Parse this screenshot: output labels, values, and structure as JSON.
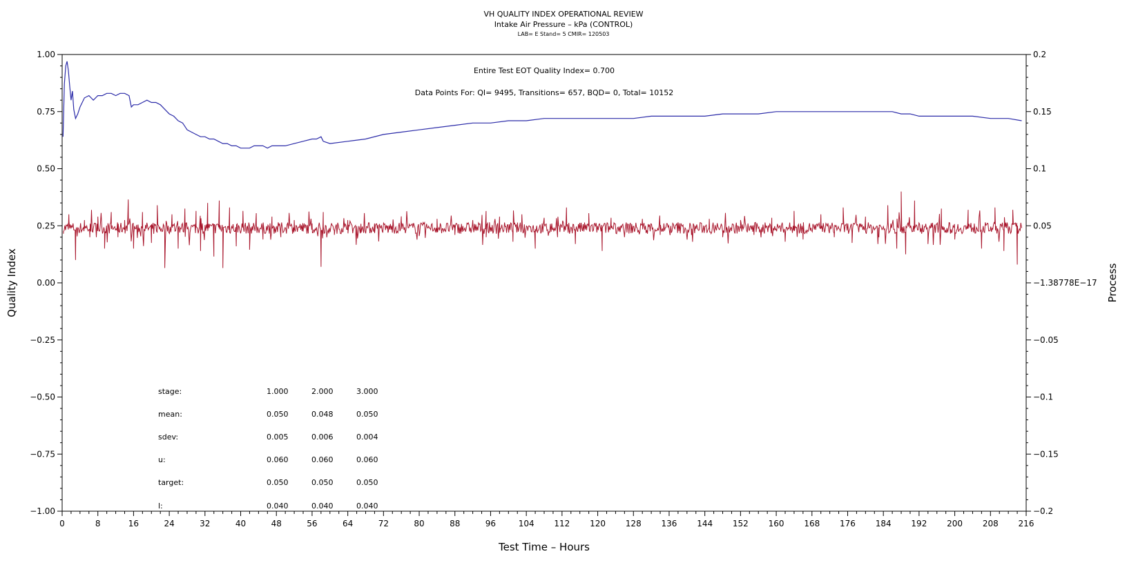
{
  "header": {
    "title": "VH QUALITY INDEX OPERATIONAL REVIEW",
    "subtitle": "Intake Air Pressure – kPa (CONTROL)",
    "meta": "LAB= E Stand= 5 CMIR= 120503"
  },
  "annotations": {
    "eot": "Entire Test EOT Quality Index=   0.700",
    "datapoints": "Data Points For: QI=  9495, Transitions=   657, BQD=     0, Total= 10152"
  },
  "colors": {
    "quality_index": "#2a2aa8",
    "process": "#a8142a",
    "axes": "#000000"
  },
  "chart_data": {
    "type": "line",
    "xlabel": "Test Time – Hours",
    "ylabel": "Quality Index",
    "y2label": "Process",
    "xlim": [
      0,
      216
    ],
    "ylim": [
      -1.0,
      1.0
    ],
    "y2lim": [
      -0.2,
      0.2
    ],
    "x_ticks": [
      "0",
      "8",
      "16",
      "24",
      "32",
      "40",
      "48",
      "56",
      "64",
      "72",
      "80",
      "88",
      "96",
      "104",
      "112",
      "120",
      "128",
      "136",
      "144",
      "152",
      "160",
      "168",
      "176",
      "184",
      "192",
      "200",
      "208",
      "216"
    ],
    "y_ticks": [
      "1.00",
      "0.75",
      "0.50",
      "0.25",
      "0.00",
      "−0.25",
      "−0.50",
      "−0.75",
      "−1.00"
    ],
    "y2_ticks": [
      "0.2",
      "0.15",
      "0.1",
      "0.05",
      "−1.38778E−17",
      "−0.05",
      "−0.1",
      "−0.15",
      "−0.2"
    ],
    "series": [
      {
        "axis": "left",
        "x": [
          0.2,
          0.5,
          0.8,
          1.1,
          1.4,
          1.7,
          2.0,
          2.3,
          2.6,
          3.0,
          3.5,
          4.0,
          5.0,
          6.0,
          7.0,
          8.0,
          9.0,
          10.0,
          11.0,
          12.0,
          13.0,
          14.0,
          15.0,
          15.5,
          16.0,
          17.0,
          18.0,
          19.0,
          20.0,
          21.0,
          22.0,
          23.0,
          24.0,
          25.0,
          26.0,
          27.0,
          28.0,
          29.0,
          30.0,
          31.0,
          32.0,
          33.0,
          34.0,
          35.0,
          36.0,
          37.0,
          38.0,
          39.0,
          40.0,
          41.0,
          42.0,
          43.0,
          44.0,
          45.0,
          46.0,
          47.0,
          48.0,
          50.0,
          52.0,
          54.0,
          56.0,
          57.0,
          58.0,
          58.5,
          60.0,
          64.0,
          68.0,
          72.0,
          76.0,
          80.0,
          84.0,
          88.0,
          92.0,
          96.0,
          100.0,
          104.0,
          108.0,
          112.0,
          116.0,
          120.0,
          124.0,
          128.0,
          132.0,
          136.0,
          140.0,
          144.0,
          148.0,
          152.0,
          156.0,
          160.0,
          164.0,
          168.0,
          172.0,
          176.0,
          180.0,
          184.0,
          186.0,
          188.0,
          190.0,
          192.0,
          196.0,
          200.0,
          204.0,
          208.0,
          212.0,
          215.0
        ],
        "y": [
          0.64,
          0.87,
          0.95,
          0.97,
          0.93,
          0.86,
          0.8,
          0.84,
          0.76,
          0.72,
          0.74,
          0.77,
          0.81,
          0.82,
          0.8,
          0.82,
          0.82,
          0.83,
          0.83,
          0.82,
          0.83,
          0.83,
          0.82,
          0.77,
          0.78,
          0.78,
          0.79,
          0.8,
          0.79,
          0.79,
          0.78,
          0.76,
          0.74,
          0.73,
          0.71,
          0.7,
          0.67,
          0.66,
          0.65,
          0.64,
          0.64,
          0.63,
          0.63,
          0.62,
          0.61,
          0.61,
          0.6,
          0.6,
          0.59,
          0.59,
          0.59,
          0.6,
          0.6,
          0.6,
          0.59,
          0.6,
          0.6,
          0.6,
          0.61,
          0.62,
          0.63,
          0.63,
          0.64,
          0.62,
          0.61,
          0.62,
          0.63,
          0.65,
          0.66,
          0.67,
          0.68,
          0.69,
          0.7,
          0.7,
          0.71,
          0.71,
          0.72,
          0.72,
          0.72,
          0.72,
          0.72,
          0.72,
          0.73,
          0.73,
          0.73,
          0.73,
          0.74,
          0.74,
          0.74,
          0.75,
          0.75,
          0.75,
          0.75,
          0.75,
          0.75,
          0.75,
          0.75,
          0.74,
          0.74,
          0.73,
          0.73,
          0.73,
          0.73,
          0.72,
          0.72,
          0.71
        ]
      },
      {
        "axis": "right",
        "baseline": 0.048,
        "x": [
          0.3,
          1.5,
          2.0,
          3.0,
          5.0,
          6.2,
          8.0,
          9.5,
          11.0,
          12.5,
          14.0,
          14.8,
          16.0,
          18.0,
          20.0,
          21.3,
          23.0,
          24.6,
          26.0,
          27.5,
          28.5,
          30.0,
          31.0,
          32.6,
          34.0,
          35.2,
          36.0,
          37.5,
          39.0,
          40.5,
          42.0,
          43.5,
          45.0,
          47.0,
          49.0,
          52.0,
          54.0,
          56.0,
          58.0,
          58.5,
          61.0,
          64.0,
          67.0,
          70.0,
          73.0,
          76.0,
          80.0,
          84.0,
          88.0,
          92.0,
          95.0,
          98.0,
          101.0,
          103.0,
          106.0,
          108.0,
          111.0,
          113.0,
          115.0,
          118.0,
          121.0,
          123.0,
          126.0,
          130.0,
          134.0,
          138.0,
          141.0,
          145.0,
          148.0,
          152.0,
          155.0,
          159.0,
          162.0,
          164.0,
          166.0,
          170.0,
          173.0,
          175.0,
          177.0,
          180.0,
          183.0,
          185.0,
          187.0,
          188.0,
          189.0,
          191.0,
          194.0,
          197.0,
          200.0,
          203.0,
          206.0,
          209.0,
          211.0,
          213.0,
          214.0,
          215.0
        ],
        "y": [
          0.045,
          0.06,
          0.048,
          0.02,
          0.055,
          0.04,
          0.058,
          0.03,
          0.062,
          0.04,
          0.055,
          0.073,
          0.03,
          0.062,
          0.035,
          0.068,
          0.013,
          0.06,
          0.03,
          0.065,
          0.033,
          0.063,
          0.028,
          0.07,
          0.023,
          0.072,
          0.013,
          0.066,
          0.032,
          0.063,
          0.029,
          0.061,
          0.038,
          0.058,
          0.04,
          0.055,
          0.045,
          0.052,
          0.014,
          0.062,
          0.042,
          0.055,
          0.044,
          0.052,
          0.044,
          0.054,
          0.041,
          0.056,
          0.042,
          0.055,
          0.04,
          0.058,
          0.036,
          0.06,
          0.03,
          0.057,
          0.04,
          0.066,
          0.034,
          0.061,
          0.028,
          0.057,
          0.04,
          0.056,
          0.042,
          0.053,
          0.042,
          0.056,
          0.04,
          0.055,
          0.042,
          0.057,
          0.036,
          0.063,
          0.038,
          0.06,
          0.04,
          0.066,
          0.035,
          0.058,
          0.04,
          0.068,
          0.03,
          0.08,
          0.025,
          0.072,
          0.034,
          0.065,
          0.038,
          0.064,
          0.03,
          0.066,
          0.028,
          0.064,
          0.016,
          0.048
        ]
      }
    ],
    "stats_table": {
      "headers": [
        "stage:",
        "1.000",
        "2.000",
        "3.000"
      ],
      "rows": [
        [
          "mean:",
          "0.050",
          "0.048",
          "0.050"
        ],
        [
          "sdev:",
          "0.005",
          "0.006",
          "0.004"
        ],
        [
          "u:",
          "0.060",
          "0.060",
          "0.060"
        ],
        [
          "target:",
          "0.050",
          "0.050",
          "0.050"
        ],
        [
          "l:",
          "0.040",
          "0.040",
          "0.040"
        ]
      ]
    }
  }
}
